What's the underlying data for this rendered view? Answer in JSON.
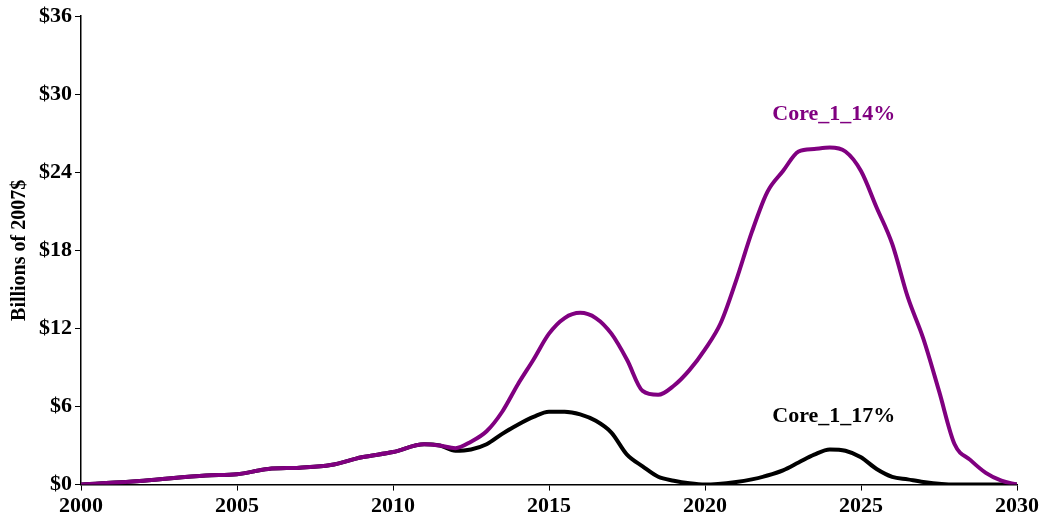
{
  "chart_data": {
    "type": "line",
    "ylabel": "Billions of 2007$",
    "xlim": [
      2000,
      2030
    ],
    "xticks": [
      2000,
      2005,
      2010,
      2015,
      2020,
      2025,
      2030
    ],
    "ylim": [
      0,
      36
    ],
    "yticks": [
      {
        "value": 0,
        "label": "$0"
      },
      {
        "value": 6,
        "label": "$6"
      },
      {
        "value": 12,
        "label": "$12"
      },
      {
        "value": 18,
        "label": "$18"
      },
      {
        "value": 24,
        "label": "$24"
      },
      {
        "value": 30,
        "label": "$30"
      },
      {
        "value": 36,
        "label": "$36"
      }
    ],
    "grid": false,
    "legend": false,
    "marker": "none",
    "line_style": "solid",
    "series": [
      {
        "name": "Core_1_14%",
        "color": "#800080",
        "x": [
          2000,
          2002,
          2004,
          2005,
          2006,
          2007,
          2008,
          2009,
          2010,
          2011,
          2011.5,
          2012,
          2012.5,
          2013,
          2013.5,
          2014,
          2014.5,
          2015,
          2015.5,
          2016,
          2016.5,
          2017,
          2017.5,
          2018,
          2018.5,
          2019,
          2019.5,
          2020,
          2020.5,
          2021,
          2021.5,
          2022,
          2022.5,
          2023,
          2023.5,
          2024,
          2024.5,
          2025,
          2025.5,
          2026,
          2026.5,
          2027,
          2027.5,
          2028,
          2028.5,
          2029,
          2029.5,
          2030
        ],
        "values": [
          0,
          0.3,
          0.7,
          0.8,
          1.2,
          1.3,
          1.5,
          2.1,
          2.5,
          3.1,
          3.0,
          2.8,
          3.3,
          4.1,
          5.6,
          7.7,
          9.6,
          11.6,
          12.8,
          13.2,
          12.8,
          11.6,
          9.6,
          7.2,
          6.9,
          7.6,
          8.8,
          10.4,
          12.4,
          15.7,
          19.4,
          22.5,
          24.1,
          25.6,
          25.8,
          25.9,
          25.6,
          24.1,
          21.3,
          18.5,
          14.4,
          11.2,
          7.2,
          3.1,
          1.9,
          0.9,
          0.3,
          0
        ]
      },
      {
        "name": "Core_1_17%",
        "color": "#000000",
        "x": [
          2000,
          2002,
          2004,
          2005,
          2006,
          2007,
          2008,
          2009,
          2010,
          2011,
          2011.5,
          2012,
          2012.5,
          2013,
          2013.5,
          2014,
          2014.5,
          2015,
          2015.5,
          2016,
          2016.5,
          2017,
          2017.5,
          2018,
          2018.5,
          2019,
          2019.5,
          2020,
          2021,
          2021.5,
          2022,
          2022.5,
          2023,
          2023.5,
          2024,
          2024.5,
          2025,
          2025.5,
          2026,
          2026.5,
          2027,
          2028,
          2030
        ],
        "values": [
          0,
          0.3,
          0.7,
          0.8,
          1.2,
          1.3,
          1.5,
          2.1,
          2.5,
          3.1,
          3.0,
          2.6,
          2.7,
          3.1,
          3.9,
          4.6,
          5.2,
          5.6,
          5.6,
          5.4,
          4.9,
          4.0,
          2.3,
          1.4,
          0.6,
          0.3,
          0.1,
          0,
          0.2,
          0.4,
          0.7,
          1.1,
          1.7,
          2.3,
          2.7,
          2.6,
          2.1,
          1.2,
          0.6,
          0.4,
          0.2,
          0,
          0
        ]
      }
    ]
  }
}
